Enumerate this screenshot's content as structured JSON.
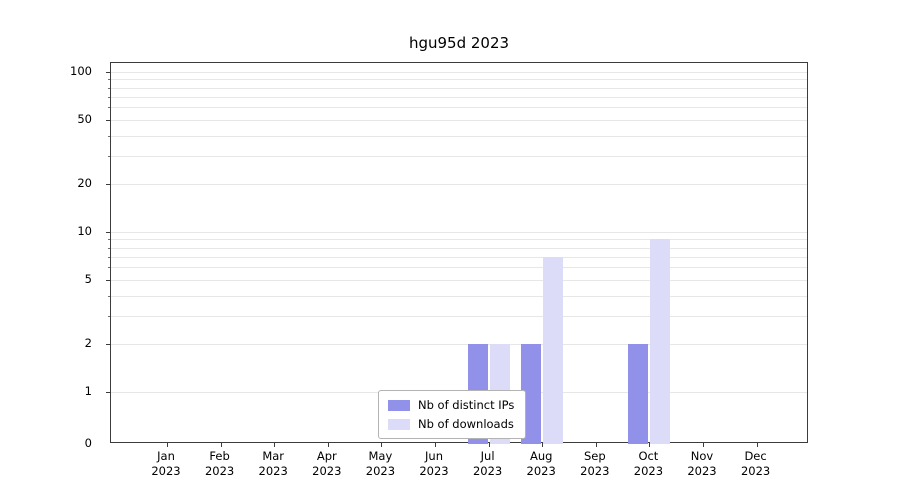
{
  "chart_data": {
    "type": "bar",
    "title": "hgu95d 2023",
    "xlabel": "",
    "ylabel": "",
    "scale": "symlog",
    "ylim": [
      0,
      100
    ],
    "grid": true,
    "legend_position": "bottom-center",
    "y_ticks": [
      0,
      1,
      2,
      5,
      10,
      20,
      50,
      100
    ],
    "categories": [
      "Jan 2023",
      "Feb 2023",
      "Mar 2023",
      "Apr 2023",
      "May 2023",
      "Jun 2023",
      "Jul 2023",
      "Aug 2023",
      "Sep 2023",
      "Oct 2023",
      "Nov 2023",
      "Dec 2023"
    ],
    "series": [
      {
        "name": "Nb of distinct IPs",
        "color": "#9191e9",
        "values": [
          0,
          0,
          0,
          0,
          0,
          0,
          2,
          2,
          0,
          2,
          0,
          0
        ]
      },
      {
        "name": "Nb of downloads",
        "color": "#dcdcf8",
        "values": [
          0,
          0,
          0,
          0,
          0,
          0,
          2,
          7,
          0,
          9,
          0,
          0
        ]
      }
    ]
  }
}
